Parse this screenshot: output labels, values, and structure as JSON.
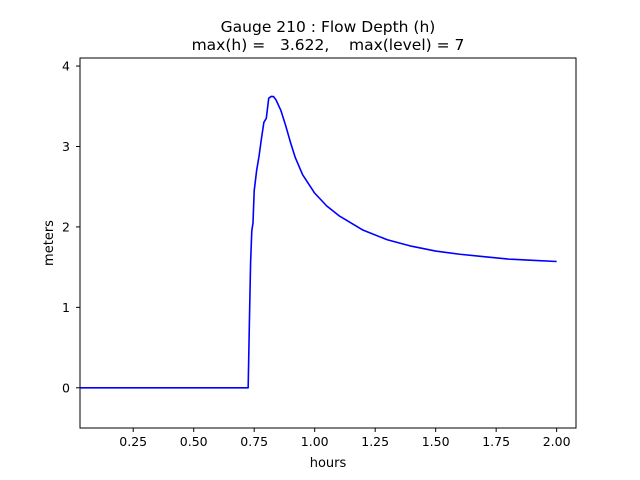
{
  "chart_data": {
    "type": "line",
    "title": "Gauge 210 : Flow Depth (h)",
    "subtitle": "max(h) =   3.622,    max(level) = 7",
    "xlabel": "hours",
    "ylabel": "meters",
    "xlim": [
      0.03,
      2.08
    ],
    "ylim": [
      -0.5,
      4.1
    ],
    "xticks": [
      0.25,
      0.5,
      0.75,
      1.0,
      1.25,
      1.5,
      1.75,
      2.0
    ],
    "xtick_labels": [
      "0.25",
      "0.50",
      "0.75",
      "1.00",
      "1.25",
      "1.50",
      "1.75",
      "2.00"
    ],
    "yticks": [
      0,
      1,
      2,
      3,
      4
    ],
    "ytick_labels": [
      "0",
      "1",
      "2",
      "3",
      "4"
    ],
    "grid": false,
    "colors": {
      "line": "#0000ff",
      "axes": "#000000",
      "background": "#ffffff"
    },
    "series": [
      {
        "x": [
          0.03,
          0.72,
          0.725,
          0.73,
          0.735,
          0.74,
          0.745,
          0.75,
          0.76,
          0.77,
          0.78,
          0.79,
          0.8,
          0.81,
          0.82,
          0.83,
          0.84,
          0.86,
          0.88,
          0.9,
          0.92,
          0.95,
          1.0,
          1.05,
          1.1,
          1.2,
          1.3,
          1.4,
          1.5,
          1.6,
          1.7,
          1.8,
          1.9,
          2.0
        ],
        "y": [
          0.0,
          0.0,
          0.0,
          0.8,
          1.55,
          1.95,
          2.05,
          2.45,
          2.7,
          2.88,
          3.1,
          3.3,
          3.35,
          3.6,
          3.622,
          3.62,
          3.58,
          3.45,
          3.26,
          3.05,
          2.86,
          2.65,
          2.42,
          2.26,
          2.14,
          1.96,
          1.84,
          1.76,
          1.7,
          1.66,
          1.63,
          1.6,
          1.585,
          1.57
        ]
      }
    ]
  }
}
